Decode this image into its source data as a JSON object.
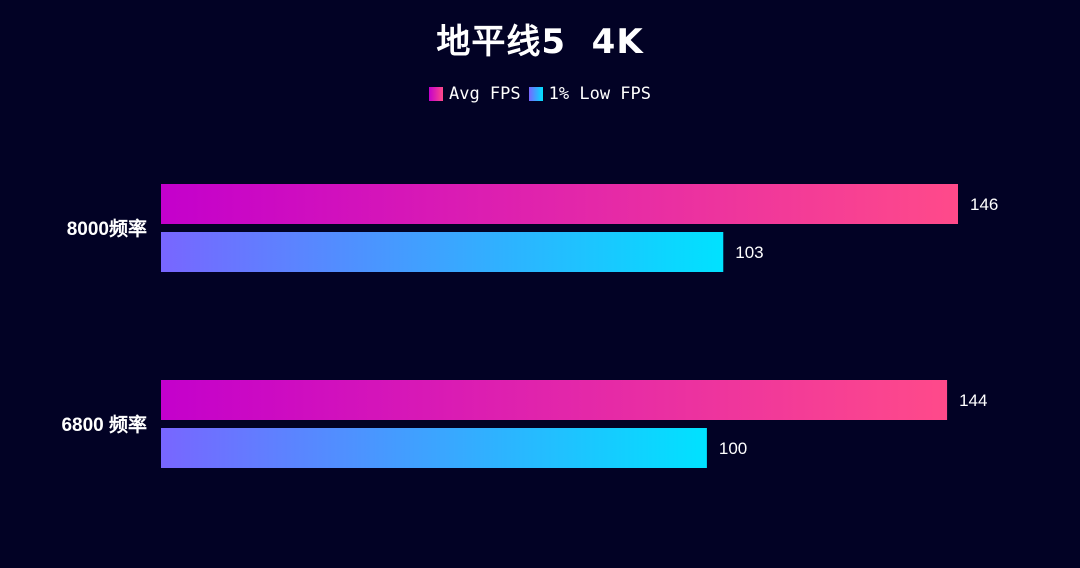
{
  "chart_data": {
    "type": "bar",
    "orientation": "horizontal",
    "title": "地平线5  4K",
    "categories": [
      "8000频率",
      "6800 频率"
    ],
    "series": [
      {
        "name": "Avg FPS",
        "values": [
          146,
          144
        ],
        "color_start": "#c400cc",
        "color_end": "#ff4a8a"
      },
      {
        "name": "1% Low FPS",
        "values": [
          103,
          100
        ],
        "color_start": "#7866ff",
        "color_end": "#00e2ff"
      }
    ],
    "xlim": [
      0,
      146
    ],
    "grid": false,
    "legend_position": "top-center",
    "background": "#020225"
  }
}
